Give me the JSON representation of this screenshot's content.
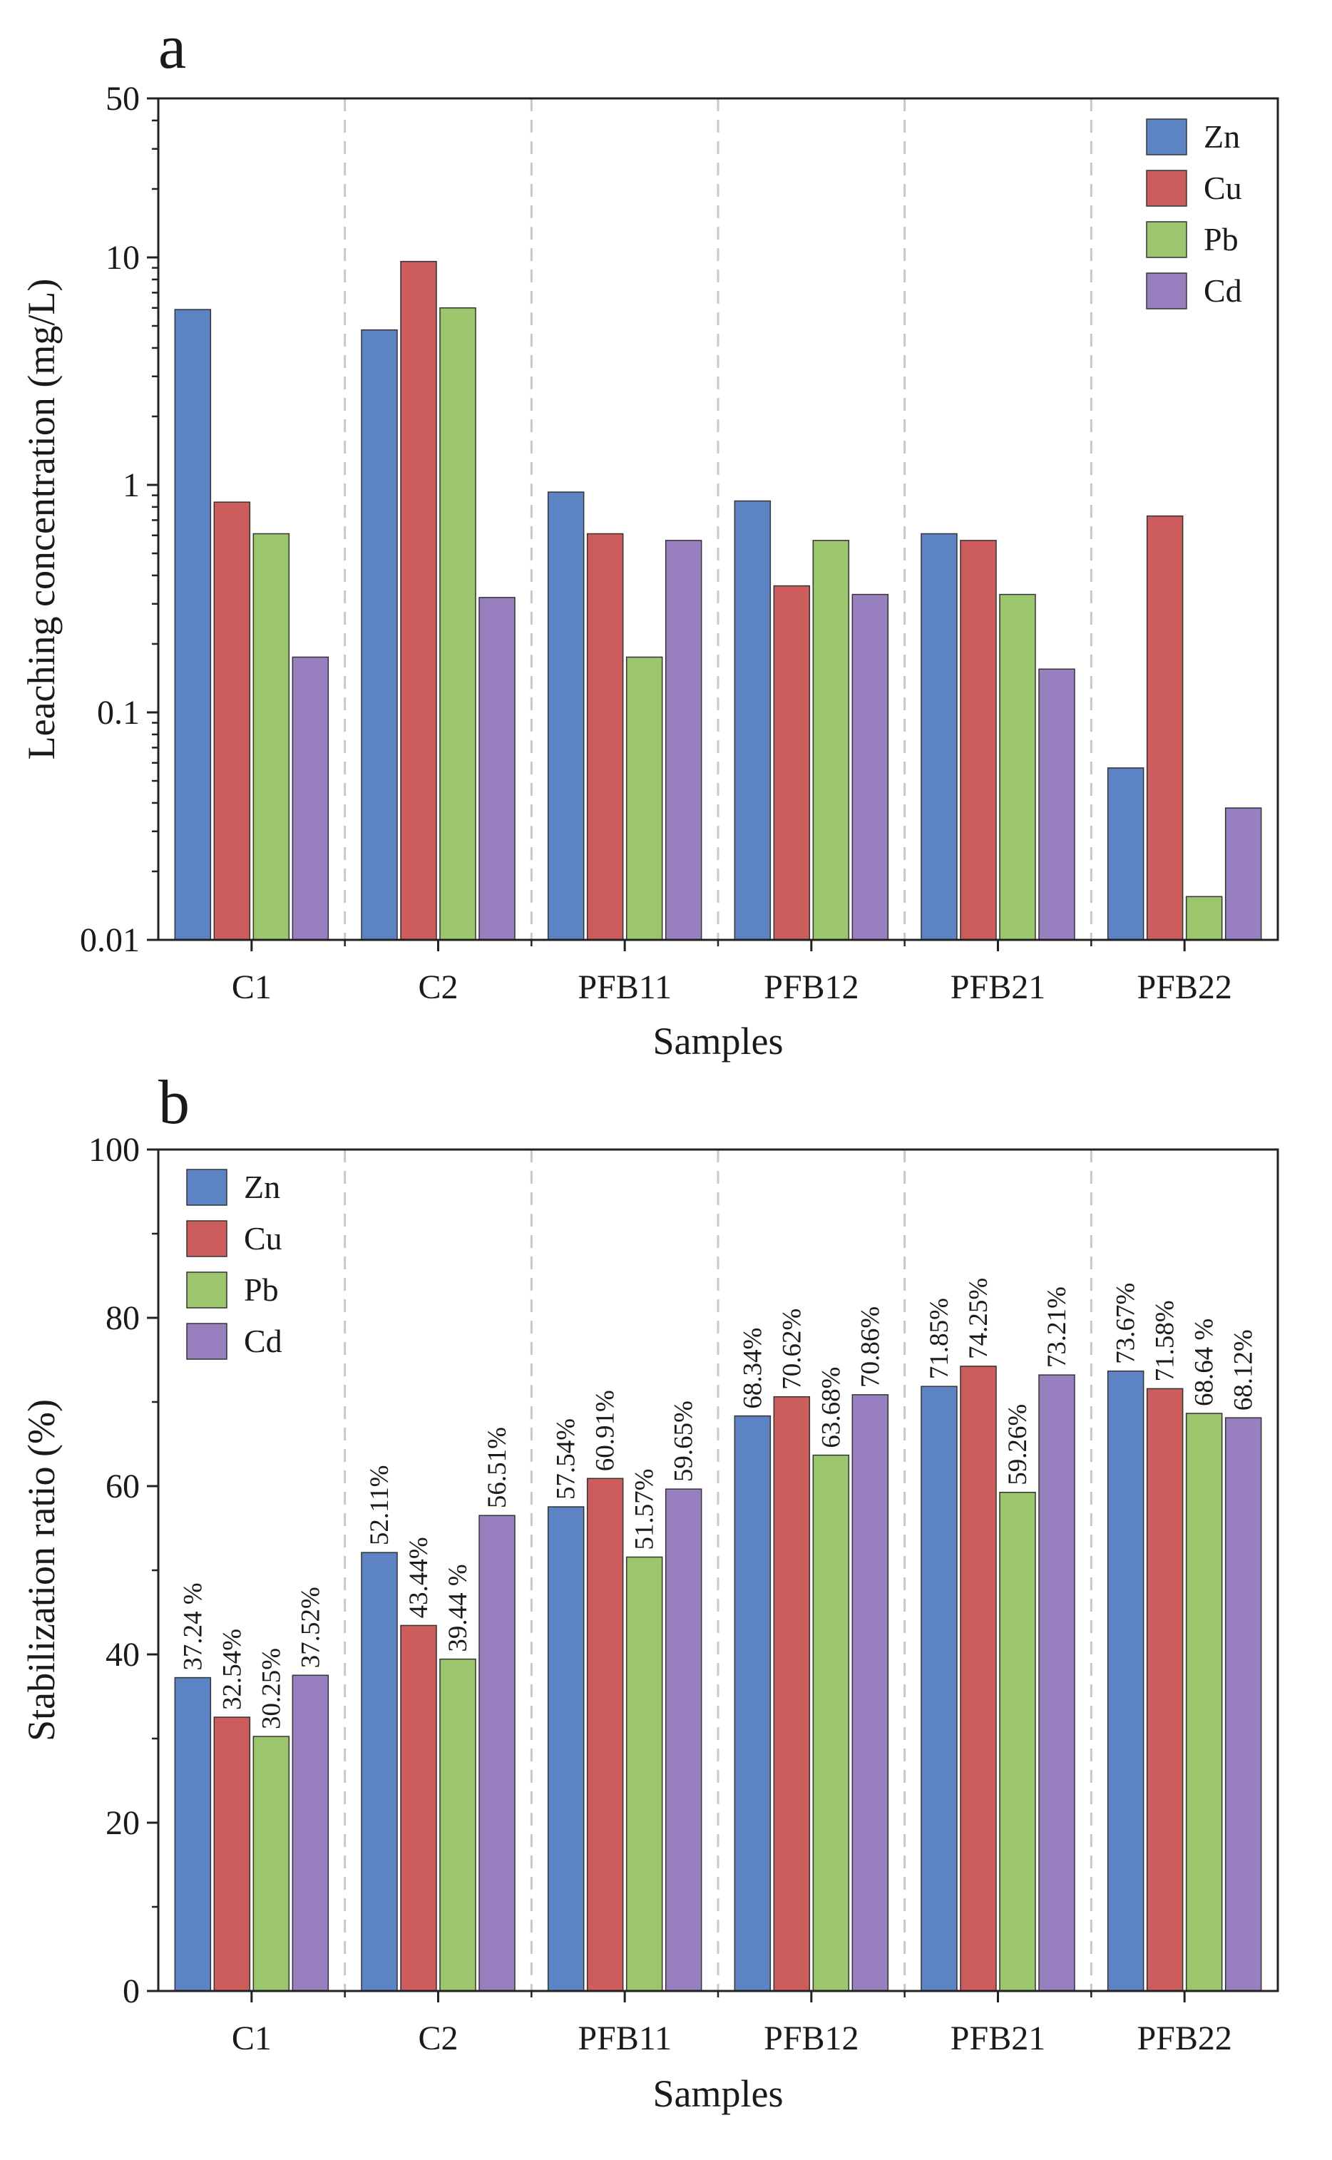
{
  "colors": {
    "Zn": "#5c84c4",
    "Cu": "#cd5c5c",
    "Pb": "#9bc66e",
    "Cd": "#9880c0"
  },
  "chart_data": [
    {
      "panel": "a",
      "type": "bar",
      "scale": "log",
      "xlabel": "Samples",
      "ylabel": "Leaching concentration (mg/L)",
      "ylim": [
        0.01,
        50
      ],
      "yticks": [
        0.01,
        0.1,
        1,
        10,
        50
      ],
      "ytick_labels": [
        "0.01",
        "0.1",
        "1",
        "10",
        "50"
      ],
      "categories": [
        "C1",
        "C2",
        "PFB11",
        "PFB12",
        "PFB21",
        "PFB22"
      ],
      "legend_position": "top-right",
      "series": [
        {
          "name": "Zn",
          "values": [
            5.9,
            4.8,
            0.93,
            0.85,
            0.61,
            0.057
          ]
        },
        {
          "name": "Cu",
          "values": [
            0.84,
            9.6,
            0.61,
            0.36,
            0.57,
            0.73
          ]
        },
        {
          "name": "Pb",
          "values": [
            0.61,
            6.0,
            0.175,
            0.57,
            0.33,
            0.0155
          ]
        },
        {
          "name": "Cd",
          "values": [
            0.175,
            0.32,
            0.57,
            0.33,
            0.155,
            0.038
          ]
        }
      ]
    },
    {
      "panel": "b",
      "type": "bar",
      "scale": "linear",
      "xlabel": "Samples",
      "ylabel": "Stabilization ratio (%)",
      "ylim": [
        0,
        100
      ],
      "yticks": [
        0,
        20,
        40,
        60,
        80,
        100
      ],
      "ytick_labels": [
        "0",
        "20",
        "40",
        "60",
        "80",
        "100"
      ],
      "categories": [
        "C1",
        "C2",
        "PFB11",
        "PFB12",
        "PFB21",
        "PFB22"
      ],
      "legend_position": "top-left",
      "series": [
        {
          "name": "Zn",
          "values": [
            37.24,
            52.11,
            57.54,
            68.34,
            71.85,
            73.67
          ],
          "labels": [
            "37.24 %",
            "52.11%",
            "57.54%",
            "68.34%",
            "71.85%",
            "73.67%"
          ]
        },
        {
          "name": "Cu",
          "values": [
            32.54,
            43.44,
            60.91,
            70.62,
            74.25,
            71.58
          ],
          "labels": [
            "32.54%",
            "43.44%",
            "60.91%",
            "70.62%",
            "74.25%",
            "71.58%"
          ]
        },
        {
          "name": "Pb",
          "values": [
            30.25,
            39.44,
            51.57,
            63.68,
            59.26,
            68.64
          ],
          "labels": [
            "30.25%",
            "39.44 %",
            "51.57%",
            "63.68%",
            "59.26%",
            "68.64 %"
          ]
        },
        {
          "name": "Cd",
          "values": [
            37.52,
            56.51,
            59.65,
            70.86,
            73.21,
            68.12
          ],
          "labels": [
            "37.52%",
            "56.51%",
            "59.65%",
            "70.86%",
            "73.21%",
            "68.12%"
          ]
        }
      ]
    }
  ]
}
